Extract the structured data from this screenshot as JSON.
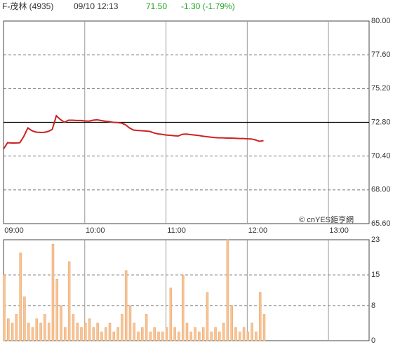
{
  "header": {
    "name": "F-茂林 (4935)",
    "time": "09/10 12:13",
    "price": "71.50",
    "change": "-1.30 (-1.79%)",
    "watermark": "© cnYES鉅亨網"
  },
  "chart_data": [
    {
      "type": "line",
      "color": "#cc2222",
      "reference": 72.8,
      "reference_color": "#000000",
      "x": [
        0,
        3,
        6,
        9,
        12,
        15,
        18,
        21,
        24,
        27,
        30,
        33,
        36,
        39,
        42,
        45,
        48,
        51,
        54,
        57,
        60,
        63,
        66,
        69,
        72,
        75,
        78,
        81,
        84,
        87,
        90,
        93,
        96,
        99,
        102,
        105,
        108,
        111,
        114,
        117,
        120,
        123,
        126,
        129,
        132,
        135,
        138,
        141,
        144,
        147,
        150,
        153,
        156,
        159,
        162,
        165,
        168,
        171,
        174,
        177,
        180,
        183,
        186,
        189,
        192
      ],
      "values": [
        70.9,
        71.35,
        71.33,
        71.33,
        71.35,
        71.8,
        72.4,
        72.2,
        72.1,
        72.08,
        72.08,
        72.15,
        72.3,
        73.27,
        73.0,
        72.8,
        72.95,
        72.95,
        72.93,
        72.93,
        72.9,
        72.88,
        72.95,
        72.98,
        72.93,
        72.88,
        72.85,
        72.8,
        72.78,
        72.75,
        72.63,
        72.4,
        72.25,
        72.22,
        72.2,
        72.18,
        72.15,
        72.05,
        71.98,
        71.95,
        71.9,
        71.88,
        71.85,
        71.83,
        71.95,
        71.97,
        71.93,
        71.9,
        71.87,
        71.82,
        71.78,
        71.75,
        71.72,
        71.7,
        71.7,
        71.68,
        71.68,
        71.67,
        71.65,
        71.65,
        71.63,
        71.62,
        71.55,
        71.45,
        71.5
      ],
      "xlim": [
        0,
        270
      ],
      "xticks": [
        {
          "value": 0,
          "label": "09:00"
        },
        {
          "value": 60,
          "label": "10:00"
        },
        {
          "value": 120,
          "label": "11:00"
        },
        {
          "value": 180,
          "label": "12:00"
        },
        {
          "value": 240,
          "label": "13:00"
        }
      ],
      "ylim": [
        65.6,
        80
      ],
      "yticks": [
        {
          "value": 80,
          "label": "80.00"
        },
        {
          "value": 77.6,
          "label": "77.60"
        },
        {
          "value": 75.2,
          "label": "75.20"
        },
        {
          "value": 72.8,
          "label": "72.80"
        },
        {
          "value": 70.4,
          "label": "70.40"
        },
        {
          "value": 68,
          "label": "68.00"
        },
        {
          "value": 65.6,
          "label": "65.60"
        }
      ],
      "grid": true
    },
    {
      "type": "bar",
      "color": "#f7c496",
      "x": [
        0,
        3,
        6,
        9,
        12,
        15,
        18,
        21,
        24,
        27,
        30,
        33,
        36,
        39,
        42,
        45,
        48,
        51,
        54,
        57,
        60,
        63,
        66,
        69,
        72,
        75,
        78,
        81,
        84,
        87,
        90,
        93,
        96,
        99,
        102,
        105,
        108,
        111,
        114,
        117,
        120,
        123,
        126,
        129,
        132,
        135,
        138,
        141,
        144,
        147,
        150,
        153,
        156,
        159,
        162,
        165,
        168,
        171,
        174,
        177,
        180,
        183,
        186,
        189,
        192
      ],
      "values": [
        15,
        5,
        4,
        6,
        20,
        10,
        4,
        3,
        5,
        4,
        6,
        4,
        22,
        14,
        8,
        3,
        18,
        6,
        4,
        3,
        4,
        5,
        3,
        4,
        2,
        3,
        4,
        2,
        3,
        6,
        16,
        8,
        4,
        2,
        3,
        6,
        2,
        3,
        2,
        2,
        3,
        12,
        3,
        2,
        15,
        4,
        2,
        3,
        2,
        3,
        11,
        2,
        3,
        2,
        4,
        23,
        8,
        3,
        2,
        3,
        2,
        4,
        2,
        11,
        6
      ],
      "xlim": [
        0,
        270
      ],
      "ylim": [
        0,
        23
      ],
      "yticks": [
        0,
        8,
        15,
        23
      ],
      "grid": true
    }
  ]
}
